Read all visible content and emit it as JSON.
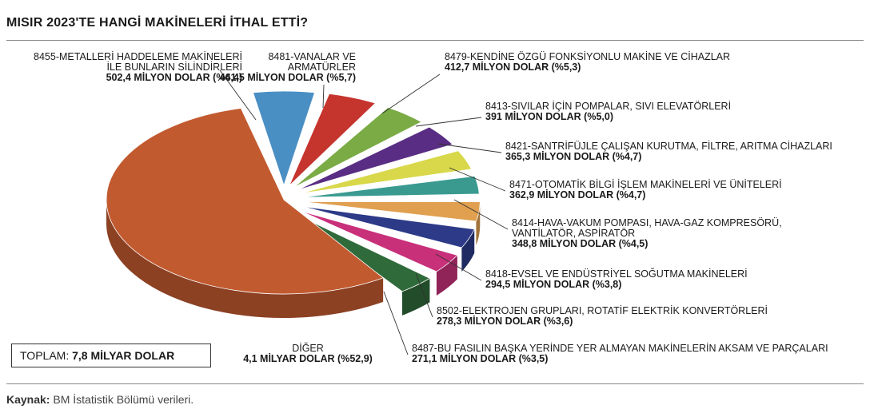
{
  "chart_data": {
    "type": "pie",
    "title": "MISIR 2023'TE HANGİ MAKİNELERİ İTHAL ETTİ?",
    "unit": "MİLYON DOLAR",
    "slices": [
      {
        "code_label": [
          "8455-METALLERİ HADDELEME MAKİNELERİ",
          "İLE BUNLARIN SİLİNDİRLERİ"
        ],
        "value_label": "502,4 MİLYON DOLAR (%6,4)",
        "value": 502.4,
        "percent": 6.4,
        "color": "#4a8fc4"
      },
      {
        "code_label": [
          "8481-VANALAR VE",
          "ARMATÜRLER"
        ],
        "value_label": "441,5 MİLYON DOLAR (%5,7)",
        "value": 441.5,
        "percent": 5.7,
        "color": "#c6342e"
      },
      {
        "code_label": [
          "8479-KENDİNE ÖZGÜ FONKSİYONLU MAKİNE VE CİHAZLAR"
        ],
        "value_label": "412,7 MİLYON DOLAR (%5,3)",
        "value": 412.7,
        "percent": 5.3,
        "color": "#7aab45"
      },
      {
        "code_label": [
          "8413-SIVILAR İÇİN POMPALAR, SIVI ELEVATÖRLERİ"
        ],
        "value_label": "391 MİLYON DOLAR (%5,0)",
        "value": 391,
        "percent": 5.0,
        "color": "#5a2d84"
      },
      {
        "code_label": [
          "8421-SANTRİFÜJLE ÇALIŞAN KURUTMA, FİLTRE, ARITMA CİHAZLARI"
        ],
        "value_label": "365,3 MİLYON DOLAR (%4,7)",
        "value": 365.3,
        "percent": 4.7,
        "color": "#d8d84a"
      },
      {
        "code_label": [
          "8471-OTOMATİK BİLGİ İŞLEM MAKİNELERİ VE ÜNİTELERİ"
        ],
        "value_label": "362,9 MİLYON DOLAR (%4,7)",
        "value": 362.9,
        "percent": 4.7,
        "color": "#3a9a90"
      },
      {
        "code_label": [
          "8414-HAVA-VAKUM POMPASI, HAVA-GAZ KOMPRESÖRÜ,",
          "VANTİLATÖR, ASPİRATÖR"
        ],
        "value_label": "348,8 MİLYON DOLAR (%4,5)",
        "value": 348.8,
        "percent": 4.5,
        "color": "#e0a050"
      },
      {
        "code_label": [
          "8418-EVSEL VE ENDÜSTRİYEL SOĞUTMA MAKİNELERİ"
        ],
        "value_label": "294,5 MİLYON DOLAR (%3,8)",
        "value": 294.5,
        "percent": 3.8,
        "color": "#2c3a88"
      },
      {
        "code_label": [
          "8502-ELEKTROJEN GRUPLARI, ROTATİF ELEKTRİK KONVERTÖRLERİ"
        ],
        "value_label": "278,3 MİLYON DOLAR (%3,6)",
        "value": 278.3,
        "percent": 3.6,
        "color": "#c8307a"
      },
      {
        "code_label": [
          "8487-BU FASILIN BAŞKA YERİNDE YER ALMAYAN MAKİNELERİN AKSAM VE PARÇALARI"
        ],
        "value_label": "271,1 MİLYON DOLAR (%3,5)",
        "value": 271.1,
        "percent": 3.5,
        "color": "#2f6a3a"
      },
      {
        "code_label": [
          "DİĞER"
        ],
        "value_label": "4,1 MİLYAR DOLAR (%52,9)",
        "value": 4100,
        "percent": 52.9,
        "color": "#c25a30"
      }
    ]
  },
  "total": {
    "label": "TOPLAM:",
    "value": "7,8 MİLYAR DOLAR"
  },
  "source": {
    "label": "Kaynak:",
    "text": "BM İstatistik Bölümü verileri."
  }
}
